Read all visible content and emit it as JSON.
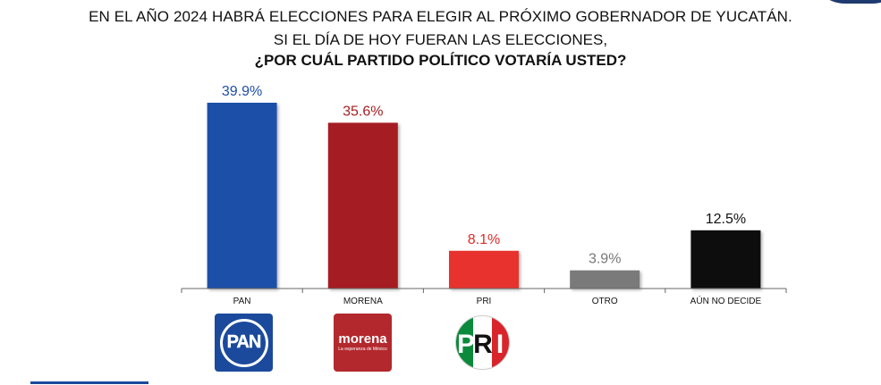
{
  "header": {
    "line1": "EN EL AÑO 2024 HABRÁ ELECCIONES PARA ELEGIR AL PRÓXIMO GOBERNADOR DE YUCATÁN.",
    "line2": "SI EL DÍA DE HOY FUERAN LAS ELECCIONES,",
    "line3": "¿POR CUÁL PARTIDO POLÍTICO VOTARÍA USTED?"
  },
  "chart_data": {
    "type": "bar",
    "categories": [
      "PAN",
      "MORENA",
      "PRI",
      "OTRO",
      "AÚN NO DECIDE"
    ],
    "values": [
      39.9,
      35.6,
      8.1,
      3.9,
      12.5
    ],
    "value_labels": [
      "39.9%",
      "35.6%",
      "8.1%",
      "3.9%",
      "12.5%"
    ],
    "colors": [
      "#1f4fa8",
      "#a51f24",
      "#e8312f",
      "#7a7a7a",
      "#0a0a0a"
    ],
    "label_colors": [
      "#1f4fa8",
      "#a51f24",
      "#e02b2b",
      "#777777",
      "#111111"
    ],
    "ylim": [
      0,
      40
    ],
    "grid": false,
    "legend": "none"
  },
  "logos": {
    "pan": {
      "name": "PAN",
      "color": "#1b4a9c"
    },
    "morena": {
      "name": "morena",
      "tagline": "La esperanza de México",
      "color": "#b3282d"
    },
    "pri": {
      "letters": [
        "P",
        "R",
        "I"
      ],
      "colors": [
        "#0a8a3a",
        "#ffffff",
        "#d8252c"
      ]
    }
  }
}
